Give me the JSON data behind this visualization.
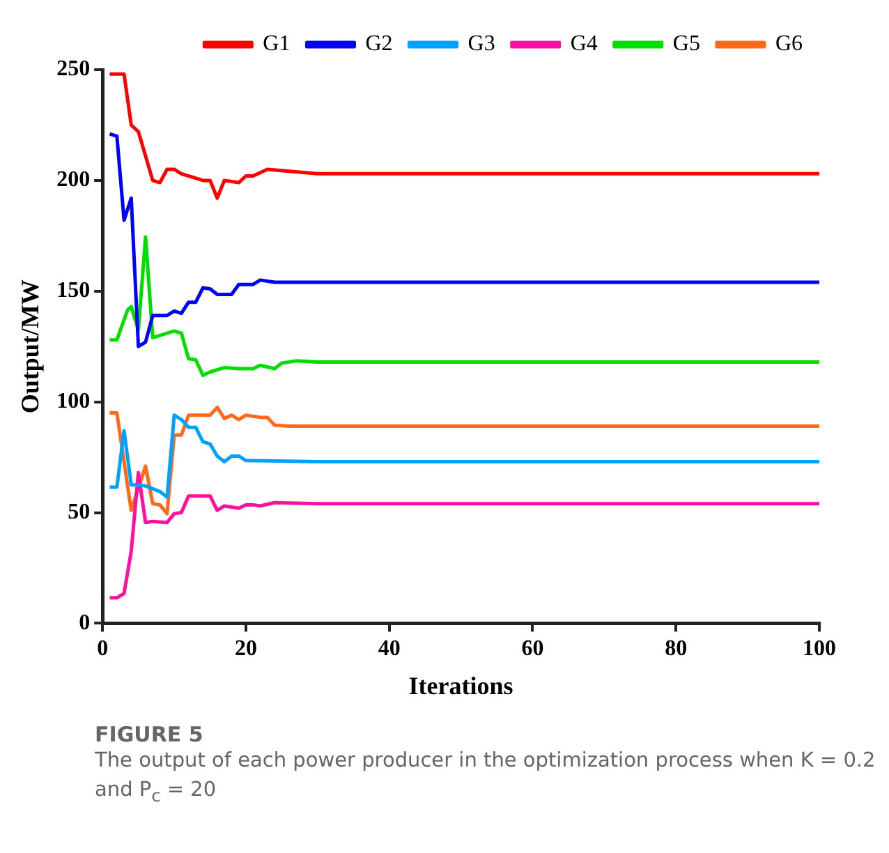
{
  "chart_data": {
    "type": "line",
    "title": "FIGURE 5",
    "subtitle": "The output of each power producer in the optimization process when K = 0.2 and P$_{c}$ = 20",
    "xlabel": "Iterations",
    "ylabel": "Output/MW",
    "xlim": [
      0,
      100
    ],
    "xticks": [
      0,
      20,
      40,
      60,
      80,
      100
    ],
    "ylim": [
      0,
      250
    ],
    "yticks": [
      0,
      50,
      100,
      150,
      200,
      250
    ],
    "grid": false,
    "legend": "top",
    "line_style": "solid",
    "series": [
      {
        "name": "G1",
        "color": "#ff0000",
        "x": [
          1,
          2,
          3,
          4,
          5,
          7,
          8,
          9,
          10,
          11,
          13,
          14,
          15,
          16,
          17,
          19,
          20,
          21,
          23,
          30,
          50,
          100
        ],
        "values": [
          248,
          248,
          248,
          225,
          222,
          200,
          199,
          205,
          205,
          203,
          201,
          200,
          200,
          192,
          200,
          199,
          202,
          202,
          205,
          203,
          203,
          203
        ]
      },
      {
        "name": "G2",
        "color": "#0000ff",
        "x": [
          1,
          2,
          3,
          4,
          5,
          6,
          7,
          9,
          10,
          11,
          12,
          13,
          14,
          15,
          16,
          18,
          19,
          21,
          22,
          24,
          30,
          50,
          100
        ],
        "values": [
          221,
          220,
          182,
          192,
          125,
          127,
          139,
          139,
          141,
          140,
          145,
          145,
          151.5,
          151,
          148.5,
          148.5,
          153,
          153,
          155,
          154,
          154,
          154,
          154
        ]
      },
      {
        "name": "G3",
        "color": "#00a2ff",
        "x": [
          1,
          2,
          3,
          4,
          5,
          6,
          8,
          9,
          10,
          11,
          12,
          13,
          14,
          15,
          16,
          17,
          18,
          19,
          20,
          30,
          50,
          100
        ],
        "values": [
          61.5,
          61.5,
          87,
          62.5,
          62.5,
          62,
          59.5,
          57,
          94,
          92,
          88.5,
          88.5,
          82,
          81,
          75.5,
          73,
          75.5,
          75.5,
          73.5,
          73,
          73,
          73
        ]
      },
      {
        "name": "G4",
        "color": "#ff10a0",
        "x": [
          1,
          2,
          3,
          4,
          5,
          6,
          7,
          9,
          10,
          11,
          12,
          15,
          16,
          17,
          19,
          20,
          21,
          22,
          24,
          30,
          50,
          100
        ],
        "values": [
          11.5,
          11.5,
          13.5,
          32.5,
          68,
          45.5,
          46,
          45.5,
          49.5,
          50,
          57.5,
          57.5,
          51,
          53,
          52,
          53.5,
          53.5,
          53,
          54.5,
          54,
          54,
          54
        ]
      },
      {
        "name": "G5",
        "color": "#00dd00",
        "x": [
          1,
          2,
          3.5,
          4,
          5,
          6,
          7,
          8,
          10,
          11,
          12,
          13,
          14,
          15,
          17,
          19,
          21,
          22,
          24,
          25,
          27,
          30,
          50,
          100
        ],
        "values": [
          128,
          128,
          141.5,
          143,
          132.5,
          174.5,
          129,
          130,
          132,
          131,
          119.5,
          119,
          112,
          113.5,
          115.5,
          115,
          115,
          116.5,
          115,
          117.5,
          118.5,
          118,
          118,
          118
        ]
      },
      {
        "name": "G6",
        "color": "#ff6a1a",
        "x": [
          1,
          2,
          4,
          6,
          7,
          8,
          9,
          10,
          11,
          12,
          14,
          15,
          16,
          17,
          18,
          19,
          20,
          22,
          23,
          24,
          26,
          30,
          50,
          100
        ],
        "values": [
          95,
          95,
          51,
          71,
          54,
          53.5,
          49.5,
          85,
          85,
          94,
          94,
          94,
          97.5,
          92.5,
          94,
          92,
          94,
          93,
          93,
          89.5,
          89,
          89,
          89,
          89
        ]
      }
    ]
  }
}
